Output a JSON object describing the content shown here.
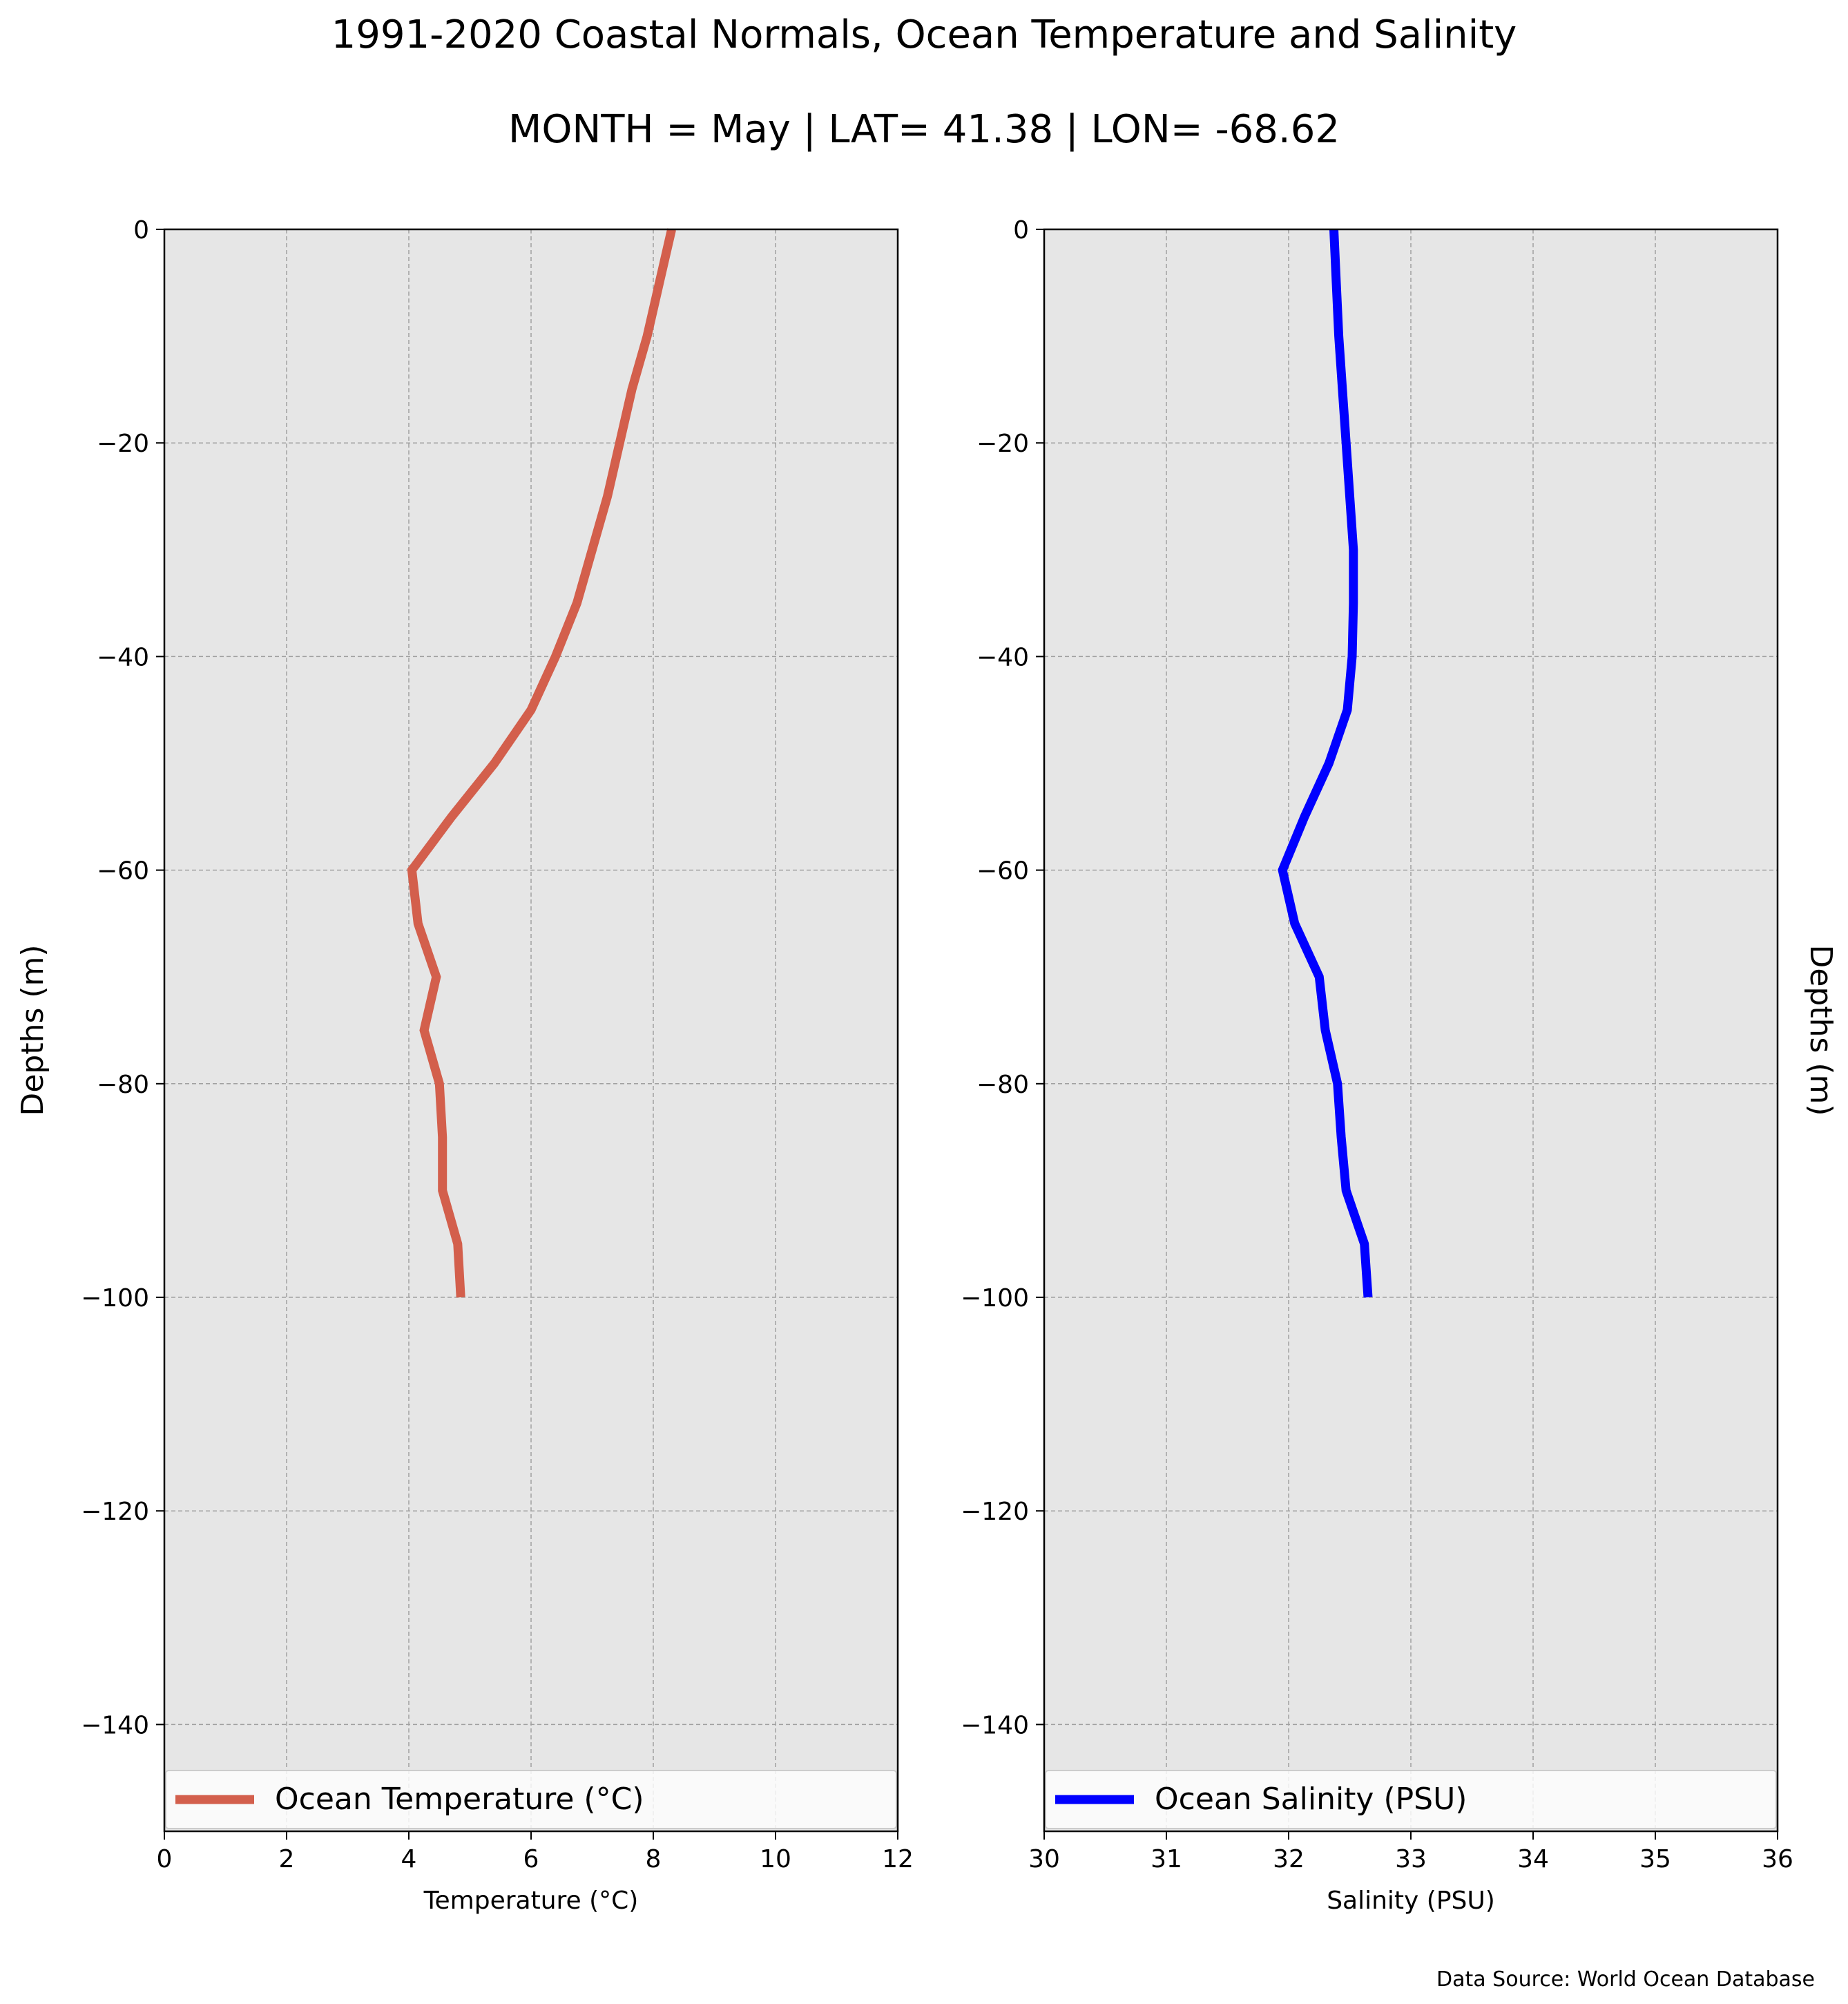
{
  "figure": {
    "title": "1991-2020 Coastal Normals, Ocean Temperature and Salinity",
    "subtitle": "MONTH = May | LAT= 41.38 | LON= -68.62",
    "source": "Data Source: World Ocean Database",
    "background": "#e6e6e6",
    "grid_color": "#a0a0a0"
  },
  "chart_data": [
    {
      "type": "line",
      "xlabel": "Temperature (°C)",
      "ylabel": "Depths (m)",
      "xlim": [
        0,
        12
      ],
      "ylim": [
        -150,
        0
      ],
      "xticks": [
        "0",
        "2",
        "4",
        "6",
        "8",
        "10",
        "12"
      ],
      "yticks": [
        "0",
        "−20",
        "−40",
        "−60",
        "−80",
        "−100",
        "−120",
        "−140"
      ],
      "grid": true,
      "legend_position": "bottom",
      "series": [
        {
          "name": "Ocean Temperature (°C)",
          "color": "#d35f4c",
          "x": [
            8.3,
            8.1,
            7.9,
            7.65,
            7.45,
            7.25,
            7.0,
            6.75,
            6.4,
            6.0,
            5.4,
            4.7,
            4.05,
            4.15,
            4.45,
            4.25,
            4.5,
            4.55,
            4.55,
            4.8,
            4.85
          ],
          "y": [
            0,
            -5,
            -10,
            -15,
            -20,
            -25,
            -30,
            -35,
            -40,
            -45,
            -50,
            -55,
            -60,
            -65,
            -70,
            -75,
            -80,
            -85,
            -90,
            -95,
            -100
          ]
        }
      ]
    },
    {
      "type": "line",
      "xlabel": "Salinity (PSU)",
      "ylabel": "Depths (m)",
      "xlim": [
        30,
        36
      ],
      "ylim": [
        -150,
        0
      ],
      "xticks": [
        "30",
        "31",
        "32",
        "33",
        "34",
        "35",
        "36"
      ],
      "yticks": [
        "0",
        "−20",
        "−40",
        "−60",
        "−80",
        "−100",
        "−120",
        "−140"
      ],
      "grid": true,
      "legend_position": "bottom",
      "series": [
        {
          "name": "Ocean Salinity (PSU)",
          "color": "#0000ff",
          "x": [
            32.37,
            32.39,
            32.41,
            32.44,
            32.47,
            32.5,
            32.53,
            32.53,
            32.52,
            32.48,
            32.33,
            32.13,
            31.95,
            32.05,
            32.25,
            32.3,
            32.4,
            32.43,
            32.47,
            32.62,
            32.65
          ],
          "y": [
            0,
            -5,
            -10,
            -15,
            -20,
            -25,
            -30,
            -35,
            -40,
            -45,
            -50,
            -55,
            -60,
            -65,
            -70,
            -75,
            -80,
            -85,
            -90,
            -95,
            -100
          ]
        }
      ]
    }
  ]
}
